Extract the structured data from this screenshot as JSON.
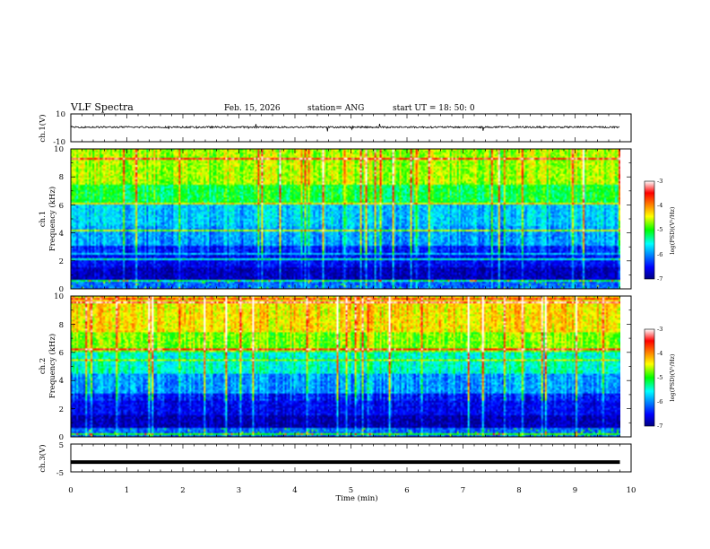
{
  "header": {
    "title": "VLF Spectra",
    "date": "Feb. 15, 2026",
    "station": "station= ANG",
    "start_ut": "start  UT =   18: 50: 0"
  },
  "chart_data": [
    {
      "type": "line",
      "name": "ch1-waveform",
      "ylabel": "ch.1(V)",
      "ylim": [
        -10,
        10
      ],
      "yticks": [
        "10",
        "-10"
      ],
      "baseline_v": 0.5
    },
    {
      "type": "heatmap",
      "name": "ch1-spectrogram",
      "ylabel_line1": "ch.1",
      "ylabel_line2": "Frequency  (kHz)",
      "ylim": [
        0,
        10
      ],
      "yticks": [
        "0",
        "2",
        "4",
        "6",
        "8",
        "10"
      ],
      "colorbar": {
        "label": "log(PSD)(V²/Hz)",
        "range": [
          -7,
          -3
        ],
        "ticks": [
          "-3",
          "-4",
          "-5",
          "-6",
          "-7"
        ]
      }
    },
    {
      "type": "heatmap",
      "name": "ch2-spectrogram",
      "ylabel_line1": "ch.2",
      "ylabel_line2": "Frequency  (kHz)",
      "ylim": [
        0,
        10
      ],
      "yticks": [
        "0",
        "2",
        "4",
        "6",
        "8",
        "10"
      ],
      "colorbar": {
        "label": "log(PSD)(V²/Hz)",
        "range": [
          -7,
          -3
        ],
        "ticks": [
          "-3",
          "-4",
          "-5",
          "-6",
          "-7"
        ]
      }
    },
    {
      "type": "line",
      "name": "ch3-waveform",
      "ylabel": "ch.3(V)",
      "ylim": [
        -5,
        5
      ],
      "yticks": [
        "5",
        "-5"
      ],
      "baseline_v": -1.5
    }
  ],
  "xaxis": {
    "label": "Time  (min)",
    "range": [
      0,
      10
    ],
    "data_end": 9.8,
    "ticks": [
      "0",
      "1",
      "2",
      "3",
      "4",
      "5",
      "6",
      "7",
      "8",
      "9",
      "10"
    ]
  }
}
